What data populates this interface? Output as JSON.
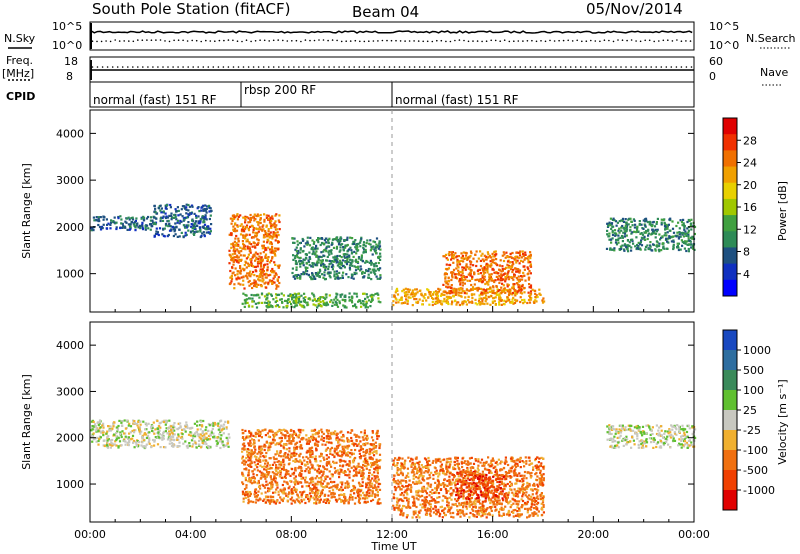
{
  "header": {
    "station": "South Pole Station (fitACF)",
    "beam": "Beam 04",
    "date": "05/Nov/2014"
  },
  "top_panel": {
    "left_labels": [
      "N.Sky",
      "Freq.",
      "[MHz]",
      "CPID"
    ],
    "left_ticks_nsky": [
      "10^5",
      "10^0"
    ],
    "left_ticks_freq": [
      "18",
      "8"
    ],
    "right_labels": [
      "N.Search",
      "Nave"
    ],
    "right_ticks_nsearch": [
      "10^5",
      "10^0"
    ],
    "right_ticks_nave": [
      "60",
      "0"
    ]
  },
  "cpid_segments": [
    {
      "label": "normal (fast) 151 RF",
      "start_h": 0,
      "end_h": 6
    },
    {
      "label": "rbsp 200 RF",
      "start_h": 6,
      "end_h": 12
    },
    {
      "label": "normal (fast) 151 RF",
      "start_h": 12,
      "end_h": 24
    }
  ],
  "power_panel": {
    "ylabel": "Slant Range [km]",
    "colorbar_label": "Power [dB]",
    "colorbar_ticks": [
      "28",
      "24",
      "20",
      "16",
      "12",
      "8",
      "4"
    ],
    "colorbar_colors": [
      "#e00000",
      "#f03000",
      "#f07000",
      "#f0a000",
      "#e8d000",
      "#a0c800",
      "#40a040",
      "#2e8b57",
      "#1e5080",
      "#1030c0",
      "#0000ff"
    ]
  },
  "velocity_panel": {
    "ylabel": "Slant Range [km]",
    "colorbar_label": "Velocity [m s⁻¹]",
    "colorbar_ticks": [
      "1000",
      "500",
      "100",
      "25",
      "-25",
      "-100",
      "-500",
      "-1000"
    ],
    "colorbar_colors": [
      "#1848c0",
      "#2e6ea0",
      "#3a8a5a",
      "#60c030",
      "#c8c8c0",
      "#f0b030",
      "#f07010",
      "#f04000",
      "#e00000"
    ]
  },
  "x_axis": {
    "label": "Time UT",
    "ticks": [
      "00:00",
      "04:00",
      "08:00",
      "12:00",
      "16:00",
      "20:00",
      "00:00"
    ]
  },
  "chart_data": [
    {
      "type": "heatmap",
      "title": "South Pole Station (fitACF) Beam 04 05/Nov/2014",
      "xlabel": "Time UT",
      "ylabel": "Slant Range [km]",
      "colorbar": "Power [dB]",
      "xlim": [
        0,
        24
      ],
      "ylim": [
        180,
        4500
      ],
      "zlim": [
        0,
        30
      ],
      "echo_regions": [
        {
          "t_start": 0.0,
          "t_end": 2.5,
          "range_start": 1950,
          "range_end": 2250,
          "power_db": 6
        },
        {
          "t_start": 2.5,
          "t_end": 4.8,
          "range_start": 1800,
          "range_end": 2500,
          "power_db": 6
        },
        {
          "t_start": 5.5,
          "t_end": 7.5,
          "range_start": 700,
          "range_end": 2300,
          "power_db": 24
        },
        {
          "t_start": 6.0,
          "t_end": 11.5,
          "range_start": 300,
          "range_end": 600,
          "power_db": 12
        },
        {
          "t_start": 8.0,
          "t_end": 11.5,
          "range_start": 900,
          "range_end": 1800,
          "power_db": 10
        },
        {
          "t_start": 12.0,
          "t_end": 18.0,
          "range_start": 350,
          "range_end": 700,
          "power_db": 20
        },
        {
          "t_start": 14.0,
          "t_end": 17.5,
          "range_start": 600,
          "range_end": 1500,
          "power_db": 24
        },
        {
          "t_start": 20.5,
          "t_end": 24.0,
          "range_start": 1500,
          "range_end": 2200,
          "power_db": 8
        }
      ]
    },
    {
      "type": "heatmap",
      "xlabel": "Time UT",
      "ylabel": "Slant Range [km]",
      "colorbar": "Velocity [m s⁻¹]",
      "xlim": [
        0,
        24
      ],
      "ylim": [
        180,
        4500
      ],
      "zlim": [
        -1000,
        1000
      ],
      "echo_regions": [
        {
          "t_start": 0.0,
          "t_end": 5.5,
          "range_start": 1800,
          "range_end": 2400,
          "velocity": 0
        },
        {
          "t_start": 6.0,
          "t_end": 11.5,
          "range_start": 600,
          "range_end": 2200,
          "velocity": -300
        },
        {
          "t_start": 12.0,
          "t_end": 18.0,
          "range_start": 300,
          "range_end": 1600,
          "velocity": -400
        },
        {
          "t_start": 14.5,
          "t_end": 16.5,
          "range_start": 700,
          "range_end": 1300,
          "velocity": -900
        },
        {
          "t_start": 20.5,
          "t_end": 24.0,
          "range_start": 1800,
          "range_end": 2300,
          "velocity": 0
        }
      ]
    }
  ]
}
